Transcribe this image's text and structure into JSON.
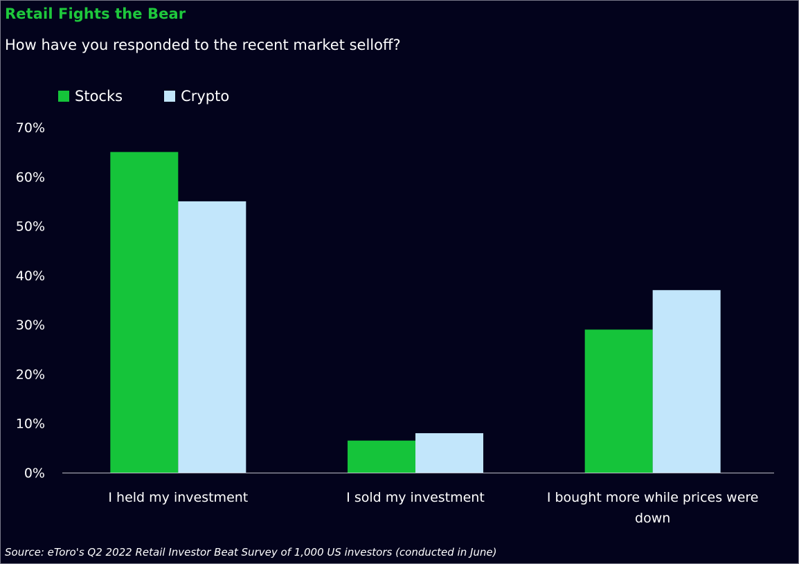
{
  "header": {
    "title": "Retail Fights the Bear",
    "subtitle": "How have you responded to the recent market selloff?"
  },
  "footer": {
    "source": "Source: eToro's Q2 2022 Retail Investor Beat Survey of 1,000 US investors (conducted in June)"
  },
  "colors": {
    "background": "#03031c",
    "stocks": "#15c43a",
    "crypto": "#c2e6fb",
    "title": "#1ec83c"
  },
  "chart_data": {
    "type": "bar",
    "title": "Retail Fights the Bear",
    "subtitle": "How have you responded to the recent market selloff?",
    "categories": [
      "I held my investment",
      "I sold my investment",
      "I bought more while prices were down"
    ],
    "series": [
      {
        "name": "Stocks",
        "values": [
          65,
          6.5,
          29
        ]
      },
      {
        "name": "Crypto",
        "values": [
          55,
          8,
          37
        ]
      }
    ],
    "ylim": [
      0,
      70
    ],
    "yticks": [
      "0%",
      "10%",
      "20%",
      "30%",
      "40%",
      "50%",
      "60%",
      "70%"
    ],
    "ytick_values": [
      0,
      10,
      20,
      30,
      40,
      50,
      60,
      70
    ],
    "xlabel": "",
    "ylabel": "",
    "grid": false,
    "legend": "top-left"
  }
}
